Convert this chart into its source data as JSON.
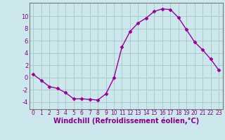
{
  "x": [
    0,
    1,
    2,
    3,
    4,
    5,
    6,
    7,
    8,
    9,
    10,
    11,
    12,
    13,
    14,
    15,
    16,
    17,
    18,
    19,
    20,
    21,
    22,
    23
  ],
  "y": [
    0.5,
    -0.5,
    -1.5,
    -1.8,
    -2.5,
    -3.5,
    -3.5,
    -3.6,
    -3.7,
    -2.7,
    -0.1,
    5.0,
    7.5,
    8.9,
    9.7,
    10.8,
    11.2,
    11.1,
    9.8,
    7.8,
    5.8,
    4.5,
    3.0,
    1.2
  ],
  "line_color": "#990099",
  "marker": "D",
  "markersize": 2.5,
  "linewidth": 1.0,
  "xlabel": "Windchill (Refroidissement éolien,°C)",
  "xlabel_fontsize": 7,
  "bg_color": "#cce8ec",
  "grid_color": "#aacccc",
  "yticks": [
    -4,
    -2,
    0,
    2,
    4,
    6,
    8,
    10
  ],
  "ylim": [
    -5.2,
    12.2
  ],
  "xlim": [
    -0.5,
    23.5
  ],
  "xticks": [
    0,
    1,
    2,
    3,
    4,
    5,
    6,
    7,
    8,
    9,
    10,
    11,
    12,
    13,
    14,
    15,
    16,
    17,
    18,
    19,
    20,
    21,
    22,
    23
  ],
  "tick_fontsize": 5.5,
  "ytick_fontsize": 6.0
}
